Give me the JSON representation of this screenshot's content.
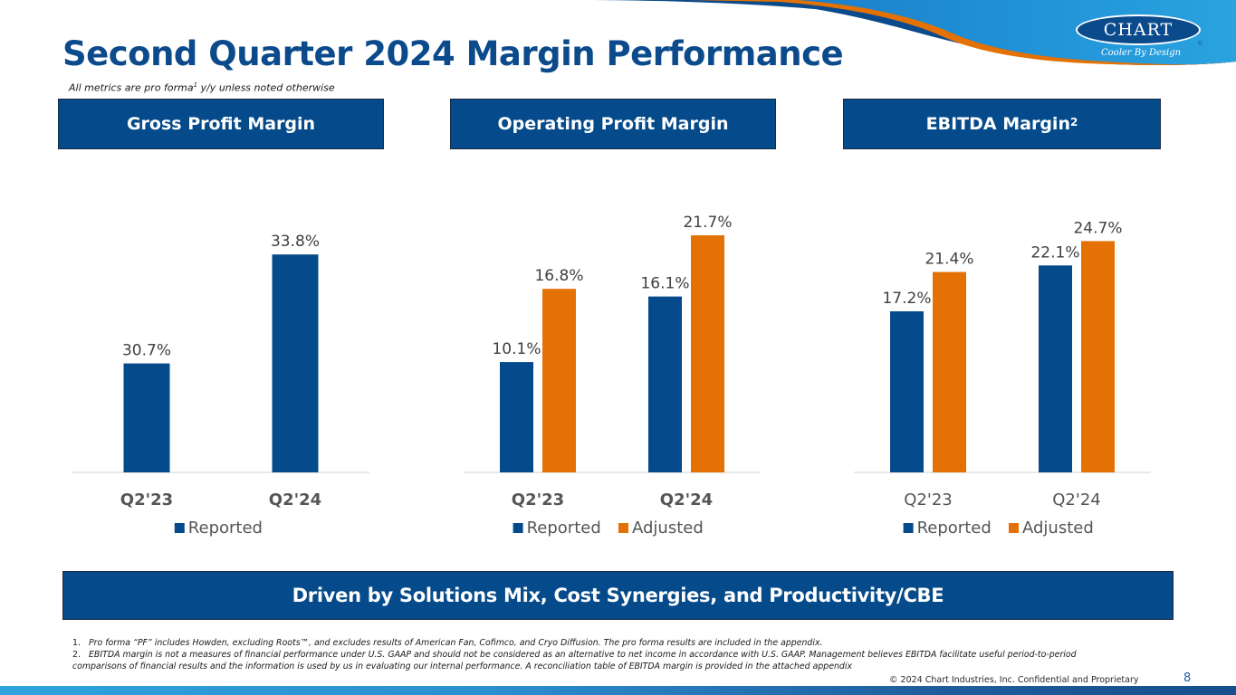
{
  "header": {
    "title": "Second Quarter 2024 Margin Performance",
    "subtitle_pre": "All metrics are pro forma",
    "subtitle_sup": "1",
    "subtitle_post": " y/y unless noted otherwise",
    "logo": {
      "name": "CHART",
      "tagline": "Cooler By Design",
      "reg": "®"
    }
  },
  "sections": [
    {
      "label": "Gross Profit Margin",
      "sup": ""
    },
    {
      "label": "Operating Profit Margin",
      "sup": ""
    },
    {
      "label": "EBITDA Margin",
      "sup": "2"
    }
  ],
  "colors": {
    "reported": "#054a8a",
    "adjusted": "#e37103",
    "brand_blue": "#0b4a8b",
    "label_text": "#404040",
    "axis_line": "#d9d9d9"
  },
  "chart_data": [
    {
      "type": "bar",
      "title": "Gross Profit Margin",
      "categories": [
        "Q2'23",
        "Q2'24"
      ],
      "category_bold": true,
      "series": [
        {
          "name": "Reported",
          "values": [
            30.7,
            33.8
          ],
          "labels": [
            "30.7%",
            "33.8%"
          ]
        }
      ],
      "ylim": [
        27.6,
        34.5
      ],
      "grid": false,
      "legend": "bottom",
      "xlabel": "",
      "ylabel": ""
    },
    {
      "type": "bar",
      "title": "Operating Profit Margin",
      "categories": [
        "Q2'23",
        "Q2'24"
      ],
      "category_bold": true,
      "series": [
        {
          "name": "Reported",
          "values": [
            10.1,
            16.1
          ],
          "labels": [
            "10.1%",
            "16.1%"
          ]
        },
        {
          "name": "Adjusted",
          "values": [
            16.8,
            21.7
          ],
          "labels": [
            "16.8%",
            "21.7%"
          ]
        }
      ],
      "ylim": [
        0,
        22.2
      ],
      "grid": false,
      "legend": "bottom",
      "xlabel": "",
      "ylabel": ""
    },
    {
      "type": "bar",
      "title": "EBITDA Margin",
      "categories": [
        "Q2'23",
        "Q2'24"
      ],
      "category_bold": false,
      "series": [
        {
          "name": "Reported",
          "values": [
            17.2,
            22.1
          ],
          "labels": [
            "17.2%",
            "22.1%"
          ]
        },
        {
          "name": "Adjusted",
          "values": [
            21.4,
            24.7
          ],
          "labels": [
            "21.4%",
            "24.7%"
          ]
        }
      ],
      "ylim": [
        0,
        25.9
      ],
      "grid": false,
      "legend": "bottom",
      "xlabel": "",
      "ylabel": ""
    }
  ],
  "banner": "Driven by Solutions Mix, Cost Synergies, and Productivity/CBE",
  "footnotes": [
    {
      "num": "1.",
      "text": "Pro forma “PF” includes Howden, excluding Roots™, and excludes results of American Fan, Cofimco, and Cryo Diffusion. The pro forma results are included in the appendix."
    },
    {
      "num": "2.",
      "text": "EBITDA margin is not a measures of financial performance under U.S. GAAP and should not be considered as an alternative to net income in accordance with U.S. GAAP. Management believes EBITDA facilitate useful period-to-period"
    },
    {
      "num": "",
      "text": "comparisons of financial results and the information is used by us in evaluating our internal performance. A reconciliation table of EBITDA margin is provided in the attached appendix"
    }
  ],
  "footer": {
    "copyright": "© 2024 Chart Industries, Inc. Confidential and Proprietary",
    "page_number": "8"
  }
}
